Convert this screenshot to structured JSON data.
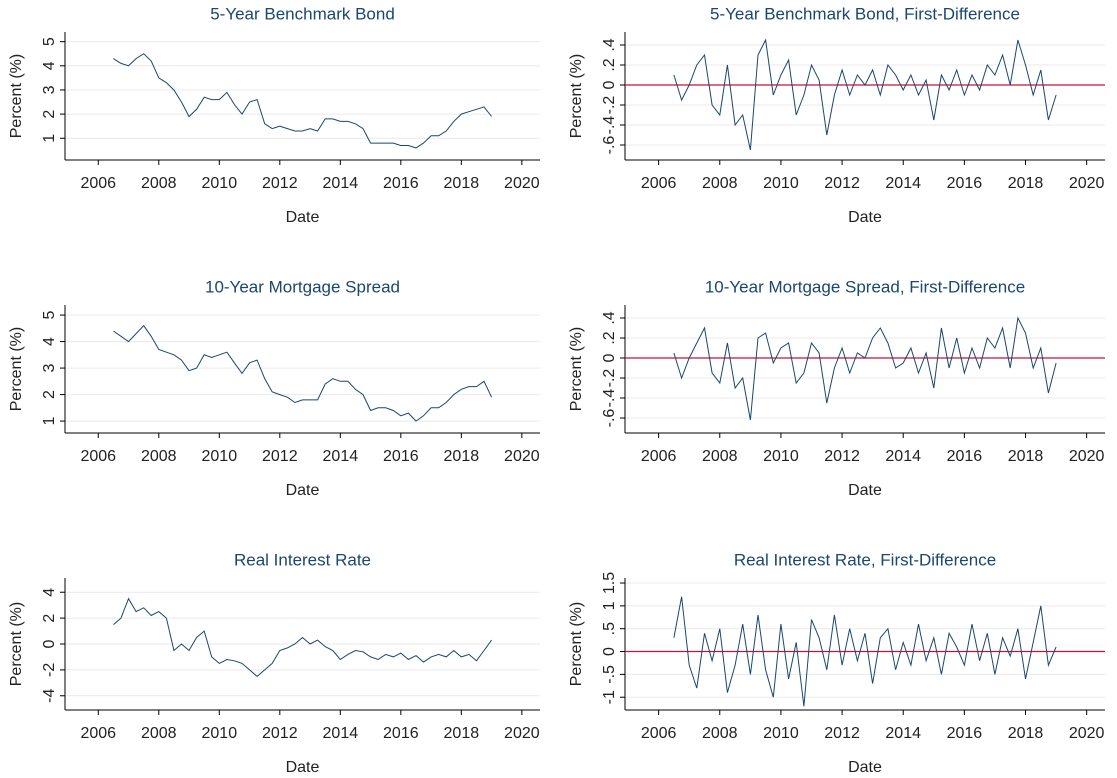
{
  "chart_data": [
    {
      "type": "line",
      "title": "5-Year Benchmark Bond",
      "xlabel": "Date",
      "ylabel": "Percent (%)",
      "color": "#1a476f",
      "grid": true,
      "x": [
        2006.5,
        2006.75,
        2007,
        2007.25,
        2007.5,
        2007.75,
        2008,
        2008.25,
        2008.5,
        2008.75,
        2009,
        2009.25,
        2009.5,
        2009.75,
        2010,
        2010.25,
        2010.5,
        2010.75,
        2011,
        2011.25,
        2011.5,
        2011.75,
        2012,
        2012.25,
        2012.5,
        2012.75,
        2013,
        2013.25,
        2013.5,
        2013.75,
        2014,
        2014.25,
        2014.5,
        2014.75,
        2015,
        2015.25,
        2015.5,
        2015.75,
        2016,
        2016.25,
        2016.5,
        2016.75,
        2017,
        2017.25,
        2017.5,
        2017.75,
        2018,
        2018.25,
        2018.5,
        2018.75,
        2019
      ],
      "values": [
        4.3,
        4.1,
        4.0,
        4.3,
        4.5,
        4.2,
        3.5,
        3.3,
        3.0,
        2.5,
        1.9,
        2.2,
        2.7,
        2.6,
        2.6,
        2.9,
        2.4,
        2.0,
        2.5,
        2.6,
        1.6,
        1.4,
        1.5,
        1.4,
        1.3,
        1.3,
        1.4,
        1.3,
        1.8,
        1.8,
        1.7,
        1.7,
        1.6,
        1.4,
        0.8,
        0.8,
        0.8,
        0.8,
        0.7,
        0.7,
        0.6,
        0.8,
        1.1,
        1.1,
        1.3,
        1.7,
        2.0,
        2.1,
        2.2,
        2.3,
        1.9
      ],
      "xlim": [
        2004.9,
        2020.6
      ],
      "xticks": [
        2006,
        2008,
        2010,
        2012,
        2014,
        2016,
        2018,
        2020
      ],
      "ylim": [
        0.1,
        5.4
      ],
      "yticks": [
        1,
        2,
        3,
        4,
        5
      ]
    },
    {
      "type": "line",
      "title": "5-Year Benchmark Bond, First-Difference",
      "xlabel": "Date",
      "ylabel": "Percent (%)",
      "color": "#1a476f",
      "grid": true,
      "zero_line": {
        "value": 0,
        "color": "#c0143c"
      },
      "x": [
        2006.5,
        2006.75,
        2007,
        2007.25,
        2007.5,
        2007.75,
        2008,
        2008.25,
        2008.5,
        2008.75,
        2009,
        2009.25,
        2009.5,
        2009.75,
        2010,
        2010.25,
        2010.5,
        2010.75,
        2011,
        2011.25,
        2011.5,
        2011.75,
        2012,
        2012.25,
        2012.5,
        2012.75,
        2013,
        2013.25,
        2013.5,
        2013.75,
        2014,
        2014.25,
        2014.5,
        2014.75,
        2015,
        2015.25,
        2015.5,
        2015.75,
        2016,
        2016.25,
        2016.5,
        2016.75,
        2017,
        2017.25,
        2017.5,
        2017.75,
        2018,
        2018.25,
        2018.5,
        2018.75,
        2019
      ],
      "values": [
        0.1,
        -0.15,
        0,
        0.2,
        0.3,
        -0.2,
        -0.3,
        0.2,
        -0.4,
        -0.3,
        -0.65,
        0.3,
        0.45,
        -0.1,
        0.1,
        0.25,
        -0.3,
        -0.1,
        0.2,
        0.05,
        -0.5,
        -0.1,
        0.15,
        -0.1,
        0.1,
        0,
        0.15,
        -0.1,
        0.2,
        0.1,
        -0.05,
        0.1,
        -0.1,
        0.05,
        -0.35,
        0.1,
        -0.05,
        0.15,
        -0.1,
        0.1,
        -0.05,
        0.2,
        0.1,
        0.3,
        0,
        0.45,
        0.2,
        -0.1,
        0.15,
        -0.35,
        -0.1
      ],
      "xlim": [
        2004.9,
        2020.6
      ],
      "xticks": [
        2006,
        2008,
        2010,
        2012,
        2014,
        2016,
        2018,
        2020
      ],
      "ylim": [
        -0.75,
        0.53
      ],
      "yticks": [
        {
          "value": 0.4,
          "label": ".4"
        },
        {
          "value": 0.2,
          "label": ".2"
        },
        0,
        {
          "value": -0.2,
          "label": "-.2"
        },
        {
          "value": -0.4,
          "label": "-.4"
        },
        {
          "value": -0.6,
          "label": "-.6"
        }
      ]
    },
    {
      "type": "line",
      "title": "10-Year Mortgage Spread",
      "xlabel": "Date",
      "ylabel": "Percent (%)",
      "color": "#1a476f",
      "grid": true,
      "x": [
        2006.5,
        2006.75,
        2007,
        2007.25,
        2007.5,
        2007.75,
        2008,
        2008.25,
        2008.5,
        2008.75,
        2009,
        2009.25,
        2009.5,
        2009.75,
        2010,
        2010.25,
        2010.5,
        2010.75,
        2011,
        2011.25,
        2011.5,
        2011.75,
        2012,
        2012.25,
        2012.5,
        2012.75,
        2013,
        2013.25,
        2013.5,
        2013.75,
        2014,
        2014.25,
        2014.5,
        2014.75,
        2015,
        2015.25,
        2015.5,
        2015.75,
        2016,
        2016.25,
        2016.5,
        2016.75,
        2017,
        2017.25,
        2017.5,
        2017.75,
        2018,
        2018.25,
        2018.5,
        2018.75,
        2019
      ],
      "values": [
        4.4,
        4.2,
        4.0,
        4.3,
        4.6,
        4.2,
        3.7,
        3.6,
        3.5,
        3.3,
        2.9,
        3.0,
        3.5,
        3.4,
        3.5,
        3.6,
        3.2,
        2.8,
        3.2,
        3.3,
        2.6,
        2.1,
        2.0,
        1.9,
        1.7,
        1.8,
        1.8,
        1.8,
        2.4,
        2.6,
        2.5,
        2.5,
        2.2,
        2.0,
        1.4,
        1.5,
        1.5,
        1.4,
        1.2,
        1.3,
        1.0,
        1.2,
        1.5,
        1.5,
        1.7,
        2.0,
        2.2,
        2.3,
        2.3,
        2.5,
        1.9
      ],
      "xlim": [
        2004.9,
        2020.6
      ],
      "xticks": [
        2006,
        2008,
        2010,
        2012,
        2014,
        2016,
        2018,
        2020
      ],
      "ylim": [
        0.55,
        5.38
      ],
      "yticks": [
        1,
        2,
        3,
        4,
        5
      ]
    },
    {
      "type": "line",
      "title": "10-Year Mortgage Spread, First-Difference",
      "xlabel": "Date",
      "ylabel": "Percent (%)",
      "color": "#1a476f",
      "grid": true,
      "zero_line": {
        "value": 0,
        "color": "#c0143c"
      },
      "x": [
        2006.5,
        2006.75,
        2007,
        2007.25,
        2007.5,
        2007.75,
        2008,
        2008.25,
        2008.5,
        2008.75,
        2009,
        2009.25,
        2009.5,
        2009.75,
        2010,
        2010.25,
        2010.5,
        2010.75,
        2011,
        2011.25,
        2011.5,
        2011.75,
        2012,
        2012.25,
        2012.5,
        2012.75,
        2013,
        2013.25,
        2013.5,
        2013.75,
        2014,
        2014.25,
        2014.5,
        2014.75,
        2015,
        2015.25,
        2015.5,
        2015.75,
        2016,
        2016.25,
        2016.5,
        2016.75,
        2017,
        2017.25,
        2017.5,
        2017.75,
        2018,
        2018.25,
        2018.5,
        2018.75,
        2019
      ],
      "values": [
        0.05,
        -0.2,
        0,
        0.15,
        0.3,
        -0.15,
        -0.25,
        0.15,
        -0.3,
        -0.2,
        -0.62,
        0.2,
        0.25,
        -0.05,
        0.1,
        0.15,
        -0.25,
        -0.15,
        0.15,
        0.05,
        -0.45,
        -0.1,
        0.1,
        -0.15,
        0.05,
        0,
        0.2,
        0.3,
        0.15,
        -0.1,
        -0.05,
        0.1,
        -0.15,
        0.05,
        -0.3,
        0.3,
        -0.1,
        0.2,
        -0.15,
        0.1,
        -0.1,
        0.2,
        0.1,
        0.3,
        -0.1,
        0.4,
        0.25,
        -0.1,
        0.1,
        -0.35,
        -0.05
      ],
      "xlim": [
        2004.9,
        2020.6
      ],
      "xticks": [
        2006,
        2008,
        2010,
        2012,
        2014,
        2016,
        2018,
        2020
      ],
      "ylim": [
        -0.75,
        0.53
      ],
      "yticks": [
        {
          "value": 0.4,
          "label": ".4"
        },
        {
          "value": 0.2,
          "label": ".2"
        },
        0,
        {
          "value": -0.2,
          "label": "-.2"
        },
        {
          "value": -0.4,
          "label": "-.4"
        },
        {
          "value": -0.6,
          "label": "-.6"
        }
      ]
    },
    {
      "type": "line",
      "title": "Real Interest Rate",
      "xlabel": "Date",
      "ylabel": "Percent (%)",
      "color": "#1a476f",
      "grid": true,
      "x": [
        2006.5,
        2006.75,
        2007,
        2007.25,
        2007.5,
        2007.75,
        2008,
        2008.25,
        2008.5,
        2008.75,
        2009,
        2009.25,
        2009.5,
        2009.75,
        2010,
        2010.25,
        2010.5,
        2010.75,
        2011,
        2011.25,
        2011.5,
        2011.75,
        2012,
        2012.25,
        2012.5,
        2012.75,
        2013,
        2013.25,
        2013.5,
        2013.75,
        2014,
        2014.25,
        2014.5,
        2014.75,
        2015,
        2015.25,
        2015.5,
        2015.75,
        2016,
        2016.25,
        2016.5,
        2016.75,
        2017,
        2017.25,
        2017.5,
        2017.75,
        2018,
        2018.25,
        2018.5,
        2018.75,
        2019
      ],
      "values": [
        1.5,
        2.0,
        3.5,
        2.5,
        2.8,
        2.2,
        2.5,
        2.0,
        -0.5,
        0.0,
        -0.5,
        0.5,
        1.0,
        -1.0,
        -1.5,
        -1.2,
        -1.3,
        -1.5,
        -2.0,
        -2.5,
        -2.0,
        -1.5,
        -0.5,
        -0.3,
        0.0,
        0.5,
        0.0,
        0.3,
        -0.2,
        -0.5,
        -1.2,
        -0.8,
        -0.5,
        -0.6,
        -1.0,
        -1.2,
        -0.8,
        -1.0,
        -0.7,
        -1.2,
        -0.9,
        -1.4,
        -1.0,
        -0.8,
        -1.0,
        -0.5,
        -1.0,
        -0.8,
        -1.3,
        -0.5,
        0.3
      ],
      "xlim": [
        2004.9,
        2020.6
      ],
      "xticks": [
        2006,
        2008,
        2010,
        2012,
        2014,
        2016,
        2018,
        2020
      ],
      "ylim": [
        -5.1,
        5.1
      ],
      "yticks": [
        4,
        2,
        0,
        -2,
        -4
      ]
    },
    {
      "type": "line",
      "title": "Real Interest Rate, First-Difference",
      "xlabel": "Date",
      "ylabel": "Percent (%)",
      "color": "#1a476f",
      "grid": true,
      "zero_line": {
        "value": 0,
        "color": "#c0143c"
      },
      "x": [
        2006.5,
        2006.75,
        2007,
        2007.25,
        2007.5,
        2007.75,
        2008,
        2008.25,
        2008.5,
        2008.75,
        2009,
        2009.25,
        2009.5,
        2009.75,
        2010,
        2010.25,
        2010.5,
        2010.75,
        2011,
        2011.25,
        2011.5,
        2011.75,
        2012,
        2012.25,
        2012.5,
        2012.75,
        2013,
        2013.25,
        2013.5,
        2013.75,
        2014,
        2014.25,
        2014.5,
        2014.75,
        2015,
        2015.25,
        2015.5,
        2015.75,
        2016,
        2016.25,
        2016.5,
        2016.75,
        2017,
        2017.25,
        2017.5,
        2017.75,
        2018,
        2018.25,
        2018.5,
        2018.75,
        2019
      ],
      "values": [
        0.3,
        1.2,
        -0.3,
        -0.8,
        0.4,
        -0.2,
        0.5,
        -0.9,
        -0.3,
        0.6,
        -0.5,
        0.8,
        -0.4,
        -1.0,
        0.6,
        -0.6,
        0.2,
        -1.2,
        0.7,
        0.3,
        -0.4,
        0.8,
        -0.3,
        0.5,
        -0.2,
        0.4,
        -0.7,
        0.3,
        0.5,
        -0.4,
        0.2,
        -0.3,
        0.6,
        -0.2,
        0.3,
        -0.5,
        0.4,
        0.1,
        -0.3,
        0.6,
        -0.2,
        0.4,
        -0.5,
        0.3,
        -0.1,
        0.5,
        -0.6,
        0.2,
        1.0,
        -0.3,
        0.1
      ],
      "xlim": [
        2004.9,
        2020.6
      ],
      "xticks": [
        2006,
        2008,
        2010,
        2012,
        2014,
        2016,
        2018,
        2020
      ],
      "ylim": [
        -1.28,
        1.61
      ],
      "yticks": [
        1.5,
        1,
        {
          "value": 0.5,
          "label": ".5"
        },
        0,
        {
          "value": -0.5,
          "label": "-.5"
        },
        -1
      ]
    }
  ]
}
